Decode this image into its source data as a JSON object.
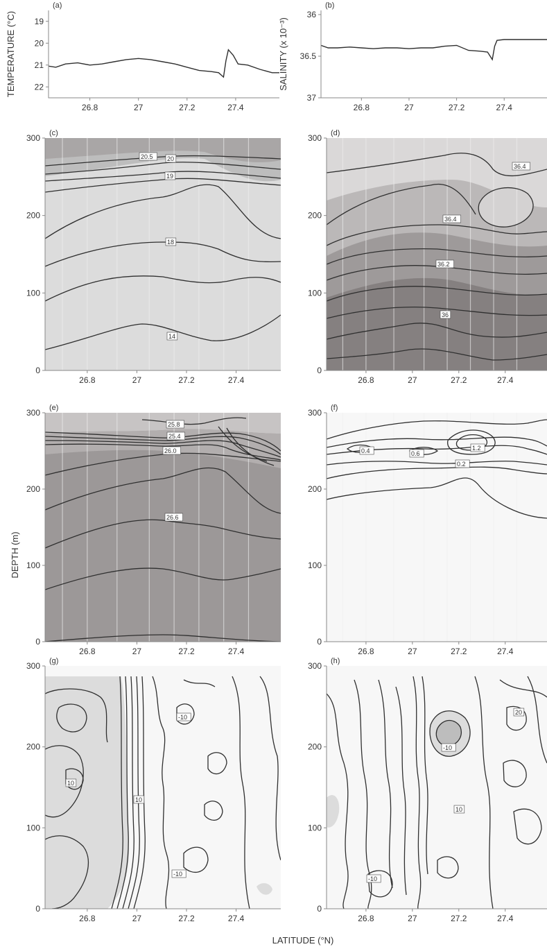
{
  "figure": {
    "common_xlabel": "LATITUDE (°N)",
    "common_ylabel": "DEPTH (m)"
  },
  "colors": {
    "line": "#2f2f2f",
    "axis": "#888888",
    "light_fill": "#dcdcdc",
    "mid_fill": "#bdbdbd",
    "dark_fill": "#8e8a8a",
    "white_fill": "#f7f7f7",
    "station_line": "#efefef"
  },
  "chart_data": [
    {
      "id": "a",
      "type": "line",
      "panel_label": "(a)",
      "ylabel": "TEMPERATURE (°C)",
      "xlim": [
        26.63,
        27.58
      ],
      "ylim": [
        18.5,
        22.5
      ],
      "x_ticks": [
        "26.8",
        "27",
        "27.2",
        "27.4"
      ],
      "y_ticks": [
        "22",
        "21",
        "20",
        "19"
      ],
      "series": [
        {
          "x": [
            26.63,
            26.66,
            26.7,
            26.75,
            26.8,
            26.85,
            26.9,
            26.95,
            27,
            27.05,
            27.1,
            27.15,
            27.2,
            27.25,
            27.3,
            27.33,
            27.35,
            27.36,
            27.37,
            27.39,
            27.41,
            27.45,
            27.5,
            27.55,
            27.58
          ],
          "y": [
            21.05,
            21.1,
            20.95,
            20.9,
            21.0,
            20.95,
            20.85,
            20.75,
            20.7,
            20.75,
            20.85,
            20.95,
            21.1,
            21.25,
            21.3,
            21.35,
            21.55,
            20.8,
            20.3,
            20.55,
            20.95,
            21.0,
            21.2,
            21.35,
            21.35
          ]
        }
      ]
    },
    {
      "id": "b",
      "type": "line",
      "panel_label": "(b)",
      "ylabel": "SALINITY (x 10⁻³)",
      "xlim": [
        26.63,
        27.58
      ],
      "ylim": [
        35.95,
        37.0
      ],
      "x_ticks": [
        "26.8",
        "27",
        "27.2",
        "27.4"
      ],
      "y_ticks": [
        "37",
        "36.5",
        "36"
      ],
      "series": [
        {
          "x": [
            26.63,
            26.66,
            26.7,
            26.75,
            26.8,
            26.85,
            26.9,
            26.95,
            27,
            27.05,
            27.1,
            27.15,
            27.2,
            27.25,
            27.3,
            27.33,
            27.35,
            27.36,
            27.37,
            27.4,
            27.45,
            27.5,
            27.55,
            27.58
          ],
          "y": [
            36.37,
            36.4,
            36.4,
            36.39,
            36.4,
            36.41,
            36.4,
            36.4,
            36.41,
            36.4,
            36.4,
            36.38,
            36.37,
            36.43,
            36.44,
            36.45,
            36.54,
            36.38,
            36.31,
            36.3,
            36.3,
            36.3,
            36.3,
            36.3
          ]
        }
      ]
    },
    {
      "id": "c",
      "type": "contour",
      "panel_label": "(c)",
      "xlim": [
        26.63,
        27.58
      ],
      "ylim": [
        300,
        0
      ],
      "x_ticks": [
        "26.8",
        "27",
        "27.2",
        "27.4"
      ],
      "y_ticks": [
        "0",
        "100",
        "200",
        "300"
      ],
      "station_x": [
        26.7,
        26.8,
        26.92,
        27.05,
        27.15,
        27.25,
        27.35,
        27.45
      ],
      "contour_labels": [
        "20.5",
        "20",
        "19",
        "18",
        "14"
      ]
    },
    {
      "id": "d",
      "type": "contour",
      "panel_label": "(d)",
      "xlim": [
        26.63,
        27.58
      ],
      "ylim": [
        300,
        0
      ],
      "x_ticks": [
        "26.8",
        "27",
        "27.2",
        "27.4"
      ],
      "y_ticks": [
        "0",
        "100",
        "200",
        "300"
      ],
      "station_x": [
        26.7,
        26.8,
        26.92,
        27.05,
        27.15,
        27.25,
        27.35,
        27.45
      ],
      "contour_labels": [
        "36.4",
        "36.4",
        "36.2",
        "36"
      ]
    },
    {
      "id": "e",
      "type": "contour",
      "panel_label": "(e)",
      "xlim": [
        26.63,
        27.58
      ],
      "ylim": [
        300,
        0
      ],
      "x_ticks": [
        "26.8",
        "27",
        "27.2",
        "27.4"
      ],
      "y_ticks": [
        "0",
        "100",
        "200",
        "300"
      ],
      "station_x": [
        26.7,
        26.8,
        26.92,
        27.05,
        27.15,
        27.25,
        27.35,
        27.45
      ],
      "contour_labels": [
        "25.8",
        "25.4",
        "26.0",
        "26.6"
      ]
    },
    {
      "id": "f",
      "type": "contour",
      "panel_label": "(f)",
      "xlim": [
        26.63,
        27.58
      ],
      "ylim": [
        300,
        0
      ],
      "x_ticks": [
        "26.8",
        "27",
        "27.2",
        "27.4"
      ],
      "y_ticks": [
        "0",
        "100",
        "200",
        "300"
      ],
      "station_x": [
        26.7,
        26.8,
        26.92,
        27.05,
        27.15,
        27.25,
        27.35,
        27.45
      ],
      "contour_labels": [
        "0.4",
        "0.6",
        "1.2",
        "0.2"
      ]
    },
    {
      "id": "g",
      "type": "contour",
      "panel_label": "(g)",
      "xlim": [
        26.63,
        27.58
      ],
      "ylim": [
        300,
        0
      ],
      "x_ticks": [
        "26.8",
        "27",
        "27.2",
        "27.4"
      ],
      "y_ticks": [
        "0",
        "100",
        "200",
        "300"
      ],
      "contour_labels": [
        "10",
        "10",
        "-10",
        "-10"
      ]
    },
    {
      "id": "h",
      "type": "contour",
      "panel_label": "(h)",
      "xlim": [
        26.63,
        27.58
      ],
      "ylim": [
        300,
        0
      ],
      "x_ticks": [
        "26.8",
        "27",
        "27.2",
        "27.4"
      ],
      "y_ticks": [
        "0",
        "100",
        "200",
        "300"
      ],
      "contour_labels": [
        "-10",
        "20",
        "10",
        "-10"
      ]
    }
  ]
}
